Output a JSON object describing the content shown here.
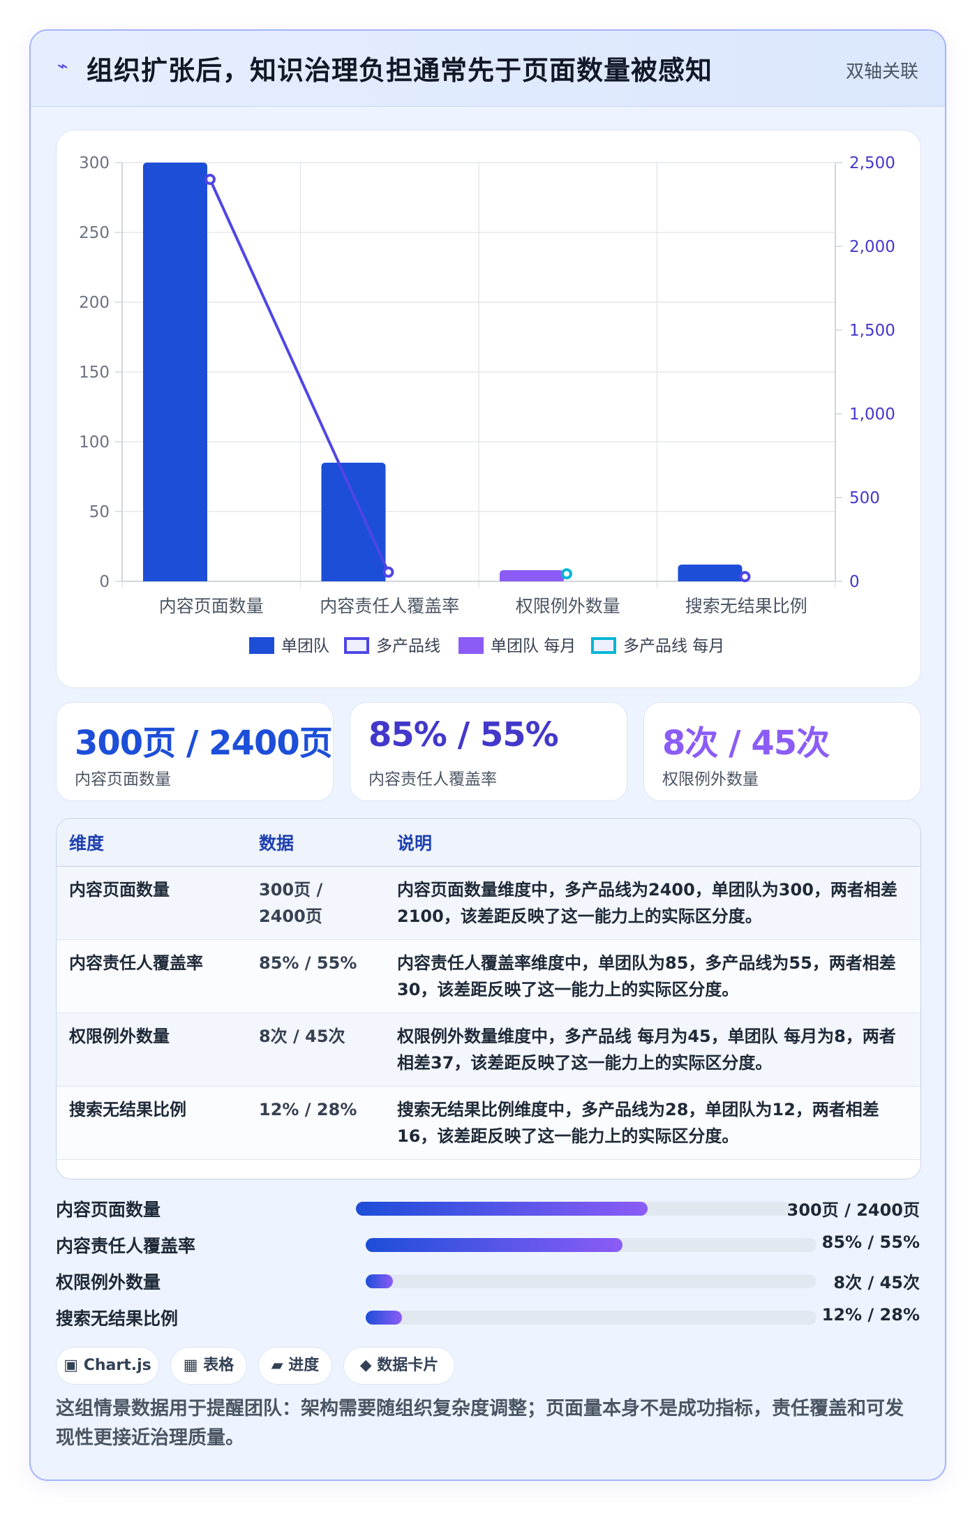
{
  "header": {
    "icon": "lightning-icon",
    "title": "组织扩张后，知识治理负担通常先于页面数量被感知",
    "tag": "双轴关联"
  },
  "chart_data": {
    "type": "bar",
    "categories": [
      "内容页面数量",
      "内容责任人覆盖率",
      "权限例外数量",
      "搜索无结果比例"
    ],
    "series": [
      {
        "name": "单团队",
        "type": "bar",
        "axis": "left",
        "color": "#1d4ed8",
        "values": [
          300,
          85,
          null,
          12
        ]
      },
      {
        "name": "多产品线",
        "type": "line",
        "axis": "right",
        "color": "#4f46e5",
        "values": [
          2400,
          55,
          null,
          28
        ]
      },
      {
        "name": "单团队 每月",
        "type": "bar",
        "axis": "left",
        "color": "#8b5cf6",
        "values": [
          null,
          null,
          8,
          null
        ]
      },
      {
        "name": "多产品线 每月",
        "type": "line",
        "axis": "right",
        "color": "#06b6d4",
        "values": [
          null,
          null,
          45,
          null
        ]
      }
    ],
    "y_left": {
      "min": 0,
      "max": 300,
      "ticks": [
        "0",
        "50",
        "100",
        "150",
        "200",
        "250",
        "300"
      ]
    },
    "y_right": {
      "min": 0,
      "max": 2500,
      "ticks": [
        "0",
        "500",
        "1,000",
        "1,500",
        "2,000",
        "2,500"
      ]
    },
    "grid": true,
    "legend_position": "bottom"
  },
  "stats": [
    {
      "value": "300页 / 2400页",
      "label": "内容页面数量",
      "color": "#1d4ed8"
    },
    {
      "value": "85% / 55%",
      "label": "内容责任人覆盖率",
      "color": "#4338ca"
    },
    {
      "value": "8次 / 45次",
      "label": "权限例外数量",
      "color": "#8b5cf6"
    }
  ],
  "table": {
    "headers": [
      "维度",
      "数据",
      "说明"
    ],
    "rows": [
      {
        "dim": "内容页面数量",
        "data": "300页 / 2400页",
        "desc": "内容页面数量维度中，多产品线为2400，单团队为300，两者相差2100，该差距反映了这一能力上的实际区分度。"
      },
      {
        "dim": "内容责任人覆盖率",
        "data": "85% / 55%",
        "desc": "内容责任人覆盖率维度中，单团队为85，多产品线为55，两者相差30，该差距反映了这一能力上的实际区分度。"
      },
      {
        "dim": "权限例外数量",
        "data": "8次 / 45次",
        "desc": "权限例外数量维度中，多产品线 每月为45，单团队 每月为8，两者相差37，该差距反映了这一能力上的实际区分度。"
      },
      {
        "dim": "搜索无结果比例",
        "data": "12% / 28%",
        "desc": "搜索无结果比例维度中，多产品线为28，单团队为12，两者相差16，该差距反映了这一能力上的实际区分度。"
      }
    ]
  },
  "progress": [
    {
      "label": "内容页面数量",
      "value": "300页 / 2400页",
      "fraction": 0.67
    },
    {
      "label": "内容责任人覆盖率",
      "value": "85% / 55%",
      "fraction": 0.57
    },
    {
      "label": "权限例外数量",
      "value": "8次 / 45次",
      "fraction": 0.06
    },
    {
      "label": "搜索无结果比例",
      "value": "12% / 28%",
      "fraction": 0.08
    }
  ],
  "chips": [
    {
      "icon": "square-icon",
      "glyph": "▣",
      "label": "Chart.js"
    },
    {
      "icon": "grid-icon",
      "glyph": "▦",
      "label": "表格"
    },
    {
      "icon": "parallelogram-icon",
      "glyph": "▰",
      "label": "进度"
    },
    {
      "icon": "diamond-icon",
      "glyph": "◆",
      "label": "数据卡片"
    }
  ],
  "footer": "这组情景数据用于提醒团队：架构需要随组织复杂度调整；页面量本身不是成功指标，责任覆盖和可发现性更接近治理质量。"
}
